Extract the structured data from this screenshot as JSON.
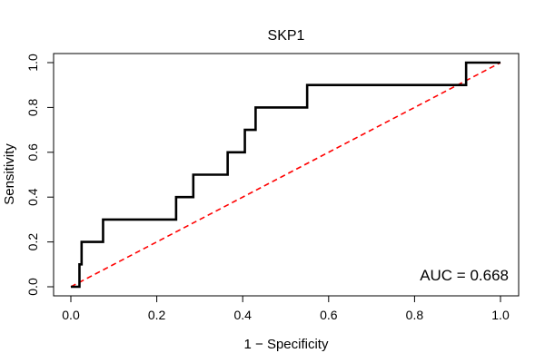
{
  "chart_data": {
    "type": "line",
    "title": "SKP1",
    "xlabel": "1 − Specificity",
    "ylabel": "Sensitivity",
    "xlim": [
      0.0,
      1.0
    ],
    "ylim": [
      0.0,
      1.0
    ],
    "x_ticks": [
      {
        "value": 0.0,
        "label": "0.0"
      },
      {
        "value": 0.2,
        "label": "0.2"
      },
      {
        "value": 0.4,
        "label": "0.4"
      },
      {
        "value": 0.6,
        "label": "0.6"
      },
      {
        "value": 0.8,
        "label": "0.8"
      },
      {
        "value": 1.0,
        "label": "1.0"
      }
    ],
    "y_ticks": [
      {
        "value": 0.0,
        "label": "0.0"
      },
      {
        "value": 0.2,
        "label": "0.2"
      },
      {
        "value": 0.4,
        "label": "0.4"
      },
      {
        "value": 0.6,
        "label": "0.6"
      },
      {
        "value": 0.8,
        "label": "0.8"
      },
      {
        "value": 1.0,
        "label": "1.0"
      }
    ],
    "grid": false,
    "annotation": "AUC = 0.668",
    "series": [
      {
        "color": "#000000",
        "style": "solid",
        "points": [
          [
            0.0,
            0.0
          ],
          [
            0.02,
            0.0
          ],
          [
            0.02,
            0.1
          ],
          [
            0.025,
            0.1
          ],
          [
            0.025,
            0.2
          ],
          [
            0.075,
            0.2
          ],
          [
            0.075,
            0.3
          ],
          [
            0.245,
            0.3
          ],
          [
            0.245,
            0.4
          ],
          [
            0.285,
            0.4
          ],
          [
            0.285,
            0.5
          ],
          [
            0.365,
            0.5
          ],
          [
            0.365,
            0.6
          ],
          [
            0.405,
            0.6
          ],
          [
            0.405,
            0.7
          ],
          [
            0.43,
            0.7
          ],
          [
            0.43,
            0.8
          ],
          [
            0.55,
            0.8
          ],
          [
            0.55,
            0.9
          ],
          [
            0.92,
            0.9
          ],
          [
            0.92,
            1.0
          ],
          [
            1.0,
            1.0
          ]
        ]
      },
      {
        "color": "#ff0000",
        "style": "dashed",
        "points": [
          [
            0.0,
            0.0
          ],
          [
            1.0,
            1.0
          ]
        ]
      }
    ]
  }
}
